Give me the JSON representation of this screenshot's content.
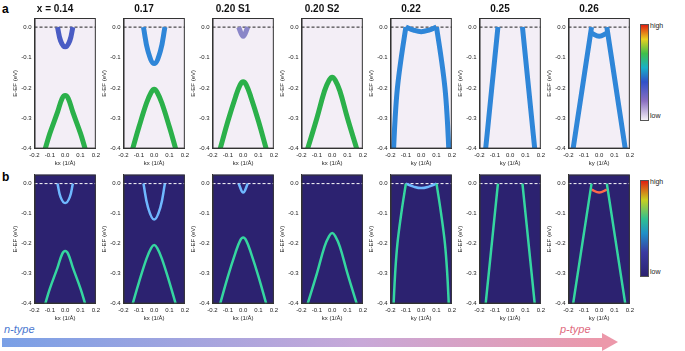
{
  "figure": {
    "row_labels": [
      "a",
      "b"
    ],
    "colorbar": {
      "high": "high",
      "low": "low"
    },
    "arrow": {
      "left": "n-type",
      "right": "p-type"
    }
  },
  "chart_data": [
    {
      "type": "line",
      "title": "x = 0.14",
      "x_label": "kx (1/Å)",
      "y_label": "E-EF (eV)",
      "xlim": [
        -0.2,
        0.2
      ],
      "ylim": [
        -0.4,
        0.03
      ],
      "xticks": [
        -0.2,
        -0.1,
        {
          "value": 0,
          "label": "0.0"
        },
        0.1,
        0.2
      ],
      "yticks": [
        {
          "value": 0,
          "label": "0.0"
        },
        -0.1,
        -0.2,
        -0.3,
        -0.4
      ],
      "grid": false,
      "fermi_level": 0,
      "series": [
        {
          "color": "#2bb04a",
          "x": [
            -0.13,
            -0.1,
            -0.05,
            -0.02,
            0,
            0.02,
            0.05,
            0.1,
            0.13
          ],
          "values": [
            -0.4,
            -0.35,
            -0.28,
            -0.235,
            -0.225,
            -0.235,
            -0.28,
            -0.35,
            -0.4
          ]
        },
        {
          "color": "#4a5cc4",
          "x": [
            -0.05,
            -0.03,
            0,
            0.03,
            0.05
          ],
          "values": [
            0,
            -0.045,
            -0.065,
            -0.045,
            0
          ]
        }
      ]
    },
    {
      "type": "line",
      "title": "0.17",
      "x_label": "kx (1/Å)",
      "y_label": "E-EF (eV)",
      "xlim": [
        -0.2,
        0.2
      ],
      "ylim": [
        -0.4,
        0.03
      ],
      "xticks": [
        -0.2,
        -0.1,
        {
          "value": 0,
          "label": "0.0"
        },
        0.1,
        0.2
      ],
      "yticks": [
        {
          "value": 0,
          "label": "0.0"
        },
        -0.1,
        -0.2,
        -0.3,
        -0.4
      ],
      "grid": false,
      "fermi_level": 0,
      "series": [
        {
          "color": "#2bb04a",
          "x": [
            -0.14,
            -0.1,
            -0.05,
            -0.02,
            0,
            0.02,
            0.05,
            0.1,
            0.14
          ],
          "values": [
            -0.4,
            -0.33,
            -0.25,
            -0.215,
            -0.205,
            -0.215,
            -0.25,
            -0.33,
            -0.4
          ]
        },
        {
          "color": "#2f86d8",
          "x": [
            -0.07,
            -0.04,
            0,
            0.04,
            0.07
          ],
          "values": [
            0,
            -0.08,
            -0.12,
            -0.08,
            0
          ]
        }
      ]
    },
    {
      "type": "line",
      "title": "0.20 S1",
      "x_label": "kx (1/Å)",
      "y_label": "E-EF (eV)",
      "xlim": [
        -0.2,
        0.2
      ],
      "ylim": [
        -0.4,
        0.03
      ],
      "xticks": [
        -0.2,
        -0.1,
        {
          "value": 0,
          "label": "0.0"
        },
        0.1,
        0.2
      ],
      "yticks": [
        {
          "value": 0,
          "label": "0.0"
        },
        -0.1,
        -0.2,
        -0.3,
        -0.4
      ],
      "grid": false,
      "fermi_level": 0,
      "series": [
        {
          "color": "#2bb04a",
          "x": [
            -0.15,
            -0.1,
            -0.05,
            -0.02,
            0,
            0.02,
            0.05,
            0.1,
            0.15
          ],
          "values": [
            -0.4,
            -0.31,
            -0.23,
            -0.19,
            -0.18,
            -0.19,
            -0.23,
            -0.31,
            -0.4
          ]
        },
        {
          "color": "#8a86c8",
          "x": [
            -0.03,
            0,
            0.03
          ],
          "values": [
            0,
            -0.03,
            0
          ]
        }
      ]
    },
    {
      "type": "line",
      "title": "0.20 S2",
      "x_label": "kx (1/Å)",
      "y_label": "E-EF (eV)",
      "xlim": [
        -0.2,
        0.2
      ],
      "ylim": [
        -0.4,
        0.03
      ],
      "xticks": [
        -0.2,
        -0.1,
        {
          "value": 0,
          "label": "0.0"
        },
        0.1,
        0.2
      ],
      "yticks": [
        {
          "value": 0,
          "label": "0.0"
        },
        -0.1,
        -0.2,
        -0.3,
        -0.4
      ],
      "grid": false,
      "fermi_level": 0,
      "series": [
        {
          "color": "#2bb04a",
          "x": [
            -0.16,
            -0.1,
            -0.05,
            -0.02,
            0,
            0.02,
            0.05,
            0.1,
            0.16
          ],
          "values": [
            -0.4,
            -0.3,
            -0.21,
            -0.175,
            -0.165,
            -0.175,
            -0.21,
            -0.3,
            -0.4
          ]
        }
      ]
    },
    {
      "type": "line",
      "title": "0.22",
      "x_label": "ky (1/Å)",
      "y_label": "E-EF (eV)",
      "xlim": [
        -0.2,
        0.2
      ],
      "ylim": [
        -0.4,
        0.03
      ],
      "xticks": [
        -0.2,
        -0.1,
        {
          "value": 0,
          "label": "0.0"
        },
        0.1,
        0.2
      ],
      "yticks": [
        {
          "value": 0,
          "label": "0.0"
        },
        -0.1,
        -0.2,
        -0.3,
        -0.4
      ],
      "grid": false,
      "fermi_level": 0,
      "series": [
        {
          "color": "#2f86d8",
          "x": [
            -0.1,
            -0.13,
            -0.155,
            -0.17,
            -0.18
          ],
          "values": [
            0,
            -0.1,
            -0.2,
            -0.3,
            -0.4
          ]
        },
        {
          "color": "#2f86d8",
          "x": [
            0.1,
            0.13,
            0.155,
            0.17,
            0.18
          ],
          "values": [
            0,
            -0.1,
            -0.2,
            -0.3,
            -0.4
          ]
        },
        {
          "color": "#2f86d8",
          "x": [
            -0.1,
            -0.05,
            0,
            0.05,
            0.1
          ],
          "values": [
            0,
            -0.01,
            -0.015,
            -0.01,
            0
          ]
        }
      ]
    },
    {
      "type": "line",
      "title": "0.25",
      "x_label": "ky (1/Å)",
      "y_label": "E-EF (eV)",
      "xlim": [
        -0.2,
        0.2
      ],
      "ylim": [
        -0.4,
        0.03
      ],
      "xticks": [
        -0.2,
        -0.1,
        {
          "value": 0,
          "label": "0.0"
        },
        0.1,
        0.2
      ],
      "yticks": [
        {
          "value": 0,
          "label": "0.0"
        },
        -0.1,
        -0.2,
        -0.3,
        -0.4
      ],
      "grid": false,
      "fermi_level": 0,
      "series": [
        {
          "color": "#2f86d8",
          "x": [
            -0.08,
            -0.1,
            -0.12,
            -0.14,
            -0.16
          ],
          "values": [
            0,
            -0.1,
            -0.2,
            -0.3,
            -0.4
          ]
        },
        {
          "color": "#2f86d8",
          "x": [
            0.08,
            0.1,
            0.12,
            0.14,
            0.16
          ],
          "values": [
            0,
            -0.1,
            -0.2,
            -0.3,
            -0.4
          ]
        }
      ]
    },
    {
      "type": "line",
      "title": "0.26",
      "x_label": "ky (1/Å)",
      "y_label": "E-EF (eV)",
      "xlim": [
        -0.2,
        0.2
      ],
      "ylim": [
        -0.4,
        0.03
      ],
      "xticks": [
        -0.2,
        -0.1,
        {
          "value": 0,
          "label": "0.0"
        },
        0.1,
        0.2
      ],
      "yticks": [
        {
          "value": 0,
          "label": "0.0"
        },
        -0.1,
        -0.2,
        -0.3,
        -0.4
      ],
      "grid": false,
      "fermi_level": 0,
      "series": [
        {
          "color": "#2f86d8",
          "x": [
            -0.05,
            -0.08,
            -0.11,
            -0.14,
            -0.17
          ],
          "values": [
            0,
            -0.1,
            -0.2,
            -0.3,
            -0.4
          ]
        },
        {
          "color": "#2f86d8",
          "x": [
            0.05,
            0.08,
            0.11,
            0.14,
            0.17
          ],
          "values": [
            0,
            -0.1,
            -0.2,
            -0.3,
            -0.4
          ]
        },
        {
          "color": "#2f86d8",
          "x": [
            -0.05,
            0,
            0.05
          ],
          "values": [
            -0.02,
            -0.03,
            -0.02
          ]
        }
      ]
    },
    {
      "type": "line",
      "x_label": "kx (1/Å)",
      "y_label": "E-EF (eV)",
      "xlim": [
        -0.2,
        0.2
      ],
      "ylim": [
        -0.4,
        0.03
      ],
      "xticks": [
        -0.2,
        -0.1,
        {
          "value": 0,
          "label": "0.0"
        },
        0.1,
        0.2
      ],
      "yticks": [
        {
          "value": 0,
          "label": "0.0"
        },
        -0.1,
        -0.2,
        -0.3,
        -0.4
      ],
      "grid": false,
      "fermi_level": 0,
      "series": [
        {
          "color": "#35d6a0",
          "x": [
            -0.13,
            -0.1,
            -0.05,
            -0.02,
            0,
            0.02,
            0.05,
            0.1,
            0.13
          ],
          "values": [
            -0.4,
            -0.35,
            -0.28,
            -0.235,
            -0.225,
            -0.235,
            -0.28,
            -0.35,
            -0.4
          ]
        },
        {
          "color": "#6fb8ff",
          "x": [
            -0.05,
            -0.03,
            0,
            0.03,
            0.05
          ],
          "values": [
            0,
            -0.045,
            -0.065,
            -0.045,
            0
          ]
        }
      ]
    },
    {
      "type": "line",
      "x_label": "kx (1/Å)",
      "y_label": "E-EF (eV)",
      "xlim": [
        -0.2,
        0.2
      ],
      "ylim": [
        -0.4,
        0.03
      ],
      "xticks": [
        -0.2,
        -0.1,
        {
          "value": 0,
          "label": "0.0"
        },
        0.1,
        0.2
      ],
      "yticks": [
        {
          "value": 0,
          "label": "0.0"
        },
        -0.1,
        -0.2,
        -0.3,
        -0.4
      ],
      "grid": false,
      "fermi_level": 0,
      "series": [
        {
          "color": "#35d6a0",
          "x": [
            -0.14,
            -0.1,
            -0.05,
            -0.02,
            0,
            0.02,
            0.05,
            0.1,
            0.14
          ],
          "values": [
            -0.4,
            -0.33,
            -0.25,
            -0.215,
            -0.205,
            -0.215,
            -0.25,
            -0.33,
            -0.4
          ]
        },
        {
          "color": "#6fb8ff",
          "x": [
            -0.07,
            -0.04,
            0,
            0.04,
            0.07
          ],
          "values": [
            0,
            -0.08,
            -0.12,
            -0.08,
            0
          ]
        }
      ]
    },
    {
      "type": "line",
      "x_label": "kx (1/Å)",
      "y_label": "E-EF (eV)",
      "xlim": [
        -0.2,
        0.2
      ],
      "ylim": [
        -0.4,
        0.03
      ],
      "xticks": [
        -0.2,
        -0.1,
        {
          "value": 0,
          "label": "0.0"
        },
        0.1,
        0.2
      ],
      "yticks": [
        {
          "value": 0,
          "label": "0.0"
        },
        -0.1,
        -0.2,
        -0.3,
        -0.4
      ],
      "grid": false,
      "fermi_level": 0,
      "series": [
        {
          "color": "#35d6a0",
          "x": [
            -0.15,
            -0.1,
            -0.05,
            -0.02,
            0,
            0.02,
            0.05,
            0.1,
            0.15
          ],
          "values": [
            -0.4,
            -0.31,
            -0.23,
            -0.19,
            -0.18,
            -0.19,
            -0.23,
            -0.31,
            -0.4
          ]
        },
        {
          "color": "#6fb8ff",
          "x": [
            -0.03,
            0,
            0.03
          ],
          "values": [
            0,
            -0.03,
            0
          ]
        }
      ]
    },
    {
      "type": "line",
      "x_label": "kx (1/Å)",
      "y_label": "E-EF (eV)",
      "xlim": [
        -0.2,
        0.2
      ],
      "ylim": [
        -0.4,
        0.03
      ],
      "xticks": [
        -0.2,
        -0.1,
        {
          "value": 0,
          "label": "0.0"
        },
        0.1,
        0.2
      ],
      "yticks": [
        {
          "value": 0,
          "label": "0.0"
        },
        -0.1,
        -0.2,
        -0.3,
        -0.4
      ],
      "grid": false,
      "fermi_level": 0,
      "series": [
        {
          "color": "#35d6a0",
          "x": [
            -0.16,
            -0.1,
            -0.05,
            -0.02,
            0,
            0.02,
            0.05,
            0.1,
            0.16
          ],
          "values": [
            -0.4,
            -0.3,
            -0.21,
            -0.175,
            -0.165,
            -0.175,
            -0.21,
            -0.3,
            -0.4
          ]
        }
      ]
    },
    {
      "type": "line",
      "x_label": "ky (1/Å)",
      "y_label": "E-EF (eV)",
      "xlim": [
        -0.2,
        0.2
      ],
      "ylim": [
        -0.4,
        0.03
      ],
      "xticks": [
        -0.2,
        -0.1,
        {
          "value": 0,
          "label": "0.0"
        },
        0.1,
        0.2
      ],
      "yticks": [
        {
          "value": 0,
          "label": "0.0"
        },
        -0.1,
        -0.2,
        -0.3,
        -0.4
      ],
      "grid": false,
      "fermi_level": 0,
      "series": [
        {
          "color": "#35d6a0",
          "x": [
            -0.1,
            -0.13,
            -0.155,
            -0.17,
            -0.18
          ],
          "values": [
            0,
            -0.1,
            -0.2,
            -0.3,
            -0.4
          ]
        },
        {
          "color": "#35d6a0",
          "x": [
            0.1,
            0.13,
            0.155,
            0.17,
            0.18
          ],
          "values": [
            0,
            -0.1,
            -0.2,
            -0.3,
            -0.4
          ]
        },
        {
          "color": "#6fb8ff",
          "x": [
            -0.1,
            -0.05,
            0,
            0.05,
            0.1
          ],
          "values": [
            0,
            -0.01,
            -0.015,
            -0.01,
            0
          ]
        }
      ]
    },
    {
      "type": "line",
      "x_label": "ky (1/Å)",
      "y_label": "E-EF (eV)",
      "xlim": [
        -0.2,
        0.2
      ],
      "ylim": [
        -0.4,
        0.03
      ],
      "xticks": [
        -0.2,
        -0.1,
        {
          "value": 0,
          "label": "0.0"
        },
        0.1,
        0.2
      ],
      "yticks": [
        {
          "value": 0,
          "label": "0.0"
        },
        -0.1,
        -0.2,
        -0.3,
        -0.4
      ],
      "grid": false,
      "fermi_level": 0,
      "series": [
        {
          "color": "#35d6a0",
          "x": [
            -0.08,
            -0.1,
            -0.12,
            -0.14,
            -0.16
          ],
          "values": [
            0,
            -0.1,
            -0.2,
            -0.3,
            -0.4
          ]
        },
        {
          "color": "#35d6a0",
          "x": [
            0.08,
            0.1,
            0.12,
            0.14,
            0.16
          ],
          "values": [
            0,
            -0.1,
            -0.2,
            -0.3,
            -0.4
          ]
        }
      ]
    },
    {
      "type": "line",
      "x_label": "ky (1/Å)",
      "y_label": "E-EF (eV)",
      "xlim": [
        -0.2,
        0.2
      ],
      "ylim": [
        -0.4,
        0.03
      ],
      "xticks": [
        -0.2,
        -0.1,
        {
          "value": 0,
          "label": "0.0"
        },
        0.1,
        0.2
      ],
      "yticks": [
        {
          "value": 0,
          "label": "0.0"
        },
        -0.1,
        -0.2,
        -0.3,
        -0.4
      ],
      "grid": false,
      "fermi_level": 0,
      "series": [
        {
          "color": "#35d6a0",
          "x": [
            -0.05,
            -0.08,
            -0.11,
            -0.14,
            -0.17
          ],
          "values": [
            0,
            -0.1,
            -0.2,
            -0.3,
            -0.4
          ]
        },
        {
          "color": "#35d6a0",
          "x": [
            0.05,
            0.08,
            0.11,
            0.14,
            0.17
          ],
          "values": [
            0,
            -0.1,
            -0.2,
            -0.3,
            -0.4
          ]
        },
        {
          "color": "#ff6a4a",
          "x": [
            -0.05,
            0,
            0.05
          ],
          "values": [
            -0.02,
            -0.03,
            -0.02
          ]
        }
      ]
    }
  ]
}
